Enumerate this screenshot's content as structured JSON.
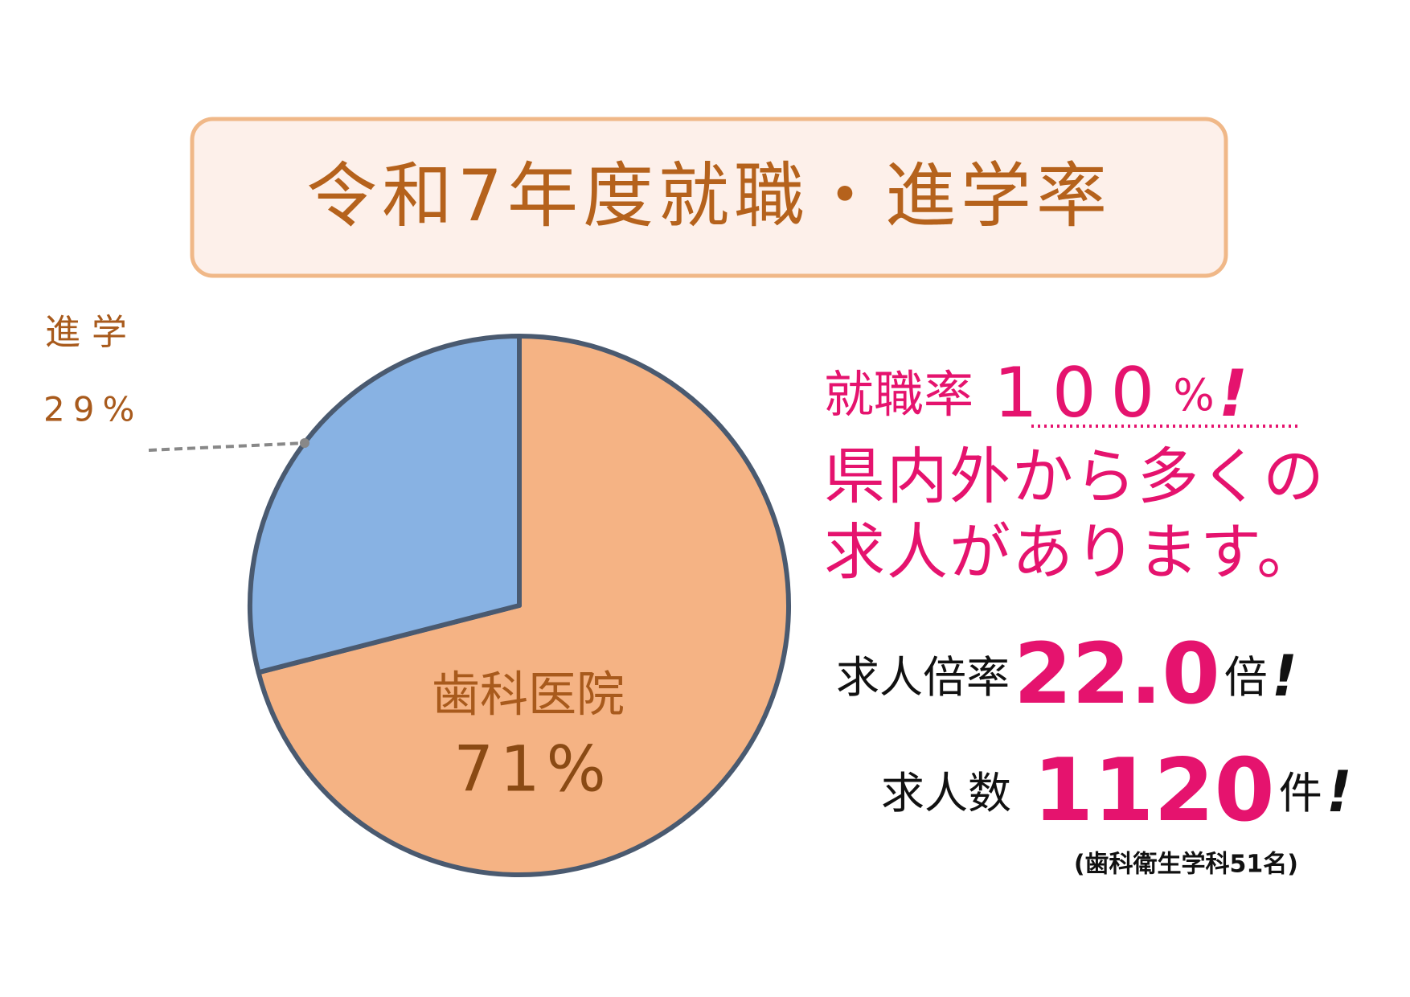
{
  "chart_data": {
    "type": "pie",
    "title": "令和7年度就職・進学率",
    "categories": [
      "歯科医院",
      "進学"
    ],
    "values": [
      71,
      29
    ],
    "value_labels": [
      "71%",
      "29%"
    ],
    "colors": [
      "#f5b384",
      "#88b2e3"
    ],
    "start": "top",
    "direction": "clockwise"
  },
  "highlights": {
    "employment_label": "就職率",
    "employment_value": "100",
    "employment_unit": "%",
    "exclaim": "!",
    "line1": "県内外から多くの",
    "line2": "求人があります。",
    "ratio_label": "求人倍率",
    "ratio_value": "22.0",
    "ratio_unit": "倍",
    "count_label": "求人数",
    "count_value": "1120",
    "count_unit": "件",
    "note": "(歯科衛生学科51名)"
  }
}
